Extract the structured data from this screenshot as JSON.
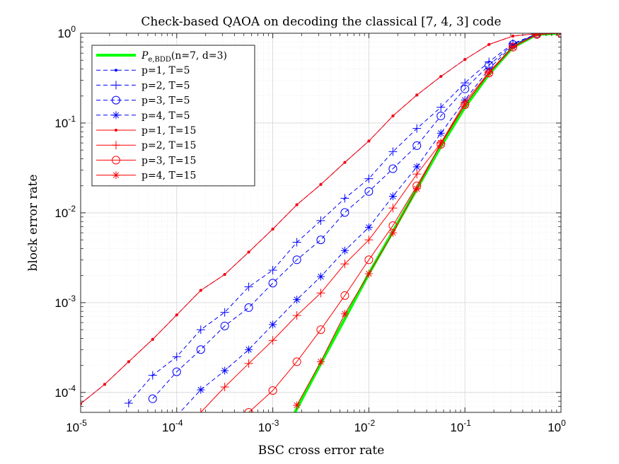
{
  "chart_data": {
    "type": "line",
    "title": "Check-based QAOA on decoding the classical [7, 4, 3] code",
    "xlabel": "BSC cross error rate",
    "ylabel": "block error rate",
    "xscale": "log",
    "yscale": "log",
    "xlim": [
      1e-05,
      1
    ],
    "ylim": [
      6e-05,
      1
    ],
    "grid": true,
    "minor_grid": true,
    "legend_position": "top-left",
    "xticks": [
      {
        "base": "10",
        "exp": "-5"
      },
      {
        "base": "10",
        "exp": "-4"
      },
      {
        "base": "10",
        "exp": "-3"
      },
      {
        "base": "10",
        "exp": "-2"
      },
      {
        "base": "10",
        "exp": "-1"
      },
      {
        "base": "10",
        "exp": "0"
      }
    ],
    "yticks": [
      {
        "base": "10",
        "exp": "-4"
      },
      {
        "base": "10",
        "exp": "-3"
      },
      {
        "base": "10",
        "exp": "-2"
      },
      {
        "base": "10",
        "exp": "-1"
      },
      {
        "base": "10",
        "exp": "0"
      }
    ],
    "series": [
      {
        "name": "P_e,BDD(n=7, d=3)",
        "label_main": "P",
        "label_sub": "e,BDD",
        "label_rest": "(n=7, d=3)",
        "color": "#00ff00",
        "dash": "solid",
        "marker": "none",
        "width": "bold",
        "x": [
          0.0017,
          0.00316,
          0.00562,
          0.01,
          0.0178,
          0.0316,
          0.0562,
          0.1,
          0.178,
          0.316,
          0.562,
          1
        ],
        "y": [
          6e-05,
          0.00021,
          0.00066,
          0.0021,
          0.0062,
          0.0185,
          0.055,
          0.15,
          0.35,
          0.7,
          0.97,
          1
        ]
      },
      {
        "name": "p=1, T=5",
        "label_main": "p=1, T=5",
        "color": "#0000ff",
        "dash": "dashed",
        "marker": "dot",
        "x": [
          1e-05,
          1.78e-05,
          3.16e-05,
          5.62e-05,
          0.0001,
          0.000178,
          0.000316,
          0.000562,
          0.001,
          0.00178,
          0.00316,
          0.00562,
          0.01,
          0.0178,
          0.0316,
          0.0562,
          0.1,
          0.178,
          0.316,
          0.562,
          1
        ],
        "y": [
          7.5e-05,
          0.000123,
          0.00022,
          0.00039,
          0.00073,
          0.00137,
          0.00206,
          0.00366,
          0.0066,
          0.0123,
          0.0207,
          0.0364,
          0.063,
          0.12,
          0.205,
          0.33,
          0.51,
          0.75,
          0.93,
          0.99,
          1
        ]
      },
      {
        "name": "p=2, T=5",
        "label_main": "p=2, T=5",
        "color": "#0000ff",
        "dash": "dashed",
        "marker": "plus",
        "x": [
          3.16e-05,
          5.62e-05,
          0.0001,
          0.000178,
          0.000316,
          0.000562,
          0.001,
          0.00178,
          0.00316,
          0.00562,
          0.01,
          0.0178,
          0.0316,
          0.0562,
          0.1,
          0.178,
          0.316,
          0.562,
          1
        ],
        "y": [
          7.6e-05,
          0.000155,
          0.00025,
          0.0005,
          0.00078,
          0.0015,
          0.0023,
          0.0047,
          0.0082,
          0.0145,
          0.024,
          0.048,
          0.087,
          0.15,
          0.28,
          0.48,
          0.77,
          0.98,
          1
        ]
      },
      {
        "name": "p=3, T=5",
        "label_main": "p=3, T=5",
        "color": "#0000ff",
        "dash": "dashed",
        "marker": "circle",
        "x": [
          5.62e-05,
          0.0001,
          0.000178,
          0.000316,
          0.000562,
          0.001,
          0.00178,
          0.00316,
          0.00562,
          0.01,
          0.0178,
          0.0316,
          0.0562,
          0.1,
          0.178,
          0.316,
          0.562,
          1
        ],
        "y": [
          8.5e-05,
          0.00017,
          0.0003,
          0.00055,
          0.00088,
          0.00165,
          0.003,
          0.005,
          0.0101,
          0.0173,
          0.031,
          0.056,
          0.12,
          0.24,
          0.44,
          0.75,
          0.98,
          1
        ]
      },
      {
        "name": "p=4, T=5",
        "label_main": "p=4, T=5",
        "color": "#0000ff",
        "dash": "dashed",
        "marker": "star",
        "x": [
          0.0001,
          0.000178,
          0.000316,
          0.000562,
          0.001,
          0.00178,
          0.00316,
          0.00562,
          0.01,
          0.0178,
          0.0316,
          0.0562,
          0.1,
          0.178,
          0.316,
          0.562,
          1
        ],
        "y": [
          5.5e-05,
          0.000107,
          0.000175,
          0.0003,
          0.00057,
          0.00108,
          0.00195,
          0.0038,
          0.0069,
          0.0153,
          0.0325,
          0.077,
          0.18,
          0.4,
          0.74,
          0.98,
          1
        ]
      },
      {
        "name": "p=1, T=15",
        "label_main": "p=1, T=15",
        "color": "#ff0000",
        "dash": "solid",
        "marker": "dot",
        "x": [
          1e-05,
          1.78e-05,
          3.16e-05,
          5.62e-05,
          0.0001,
          0.000178,
          0.000316,
          0.000562,
          0.001,
          0.00178,
          0.00316,
          0.00562,
          0.01,
          0.0178,
          0.0316,
          0.0562,
          0.1,
          0.178,
          0.316,
          0.562,
          1
        ],
        "y": [
          7.5e-05,
          0.000123,
          0.00022,
          0.00039,
          0.00073,
          0.00137,
          0.00206,
          0.00366,
          0.0066,
          0.0123,
          0.0207,
          0.0364,
          0.063,
          0.12,
          0.205,
          0.33,
          0.51,
          0.75,
          0.93,
          0.99,
          1
        ]
      },
      {
        "name": "p=2, T=15",
        "label_main": "p=2, T=15",
        "color": "#ff0000",
        "dash": "solid",
        "marker": "plus",
        "x": [
          0.000178,
          0.000316,
          0.000562,
          0.001,
          0.00178,
          0.00316,
          0.00562,
          0.01,
          0.0178,
          0.0316,
          0.0562,
          0.1,
          0.178,
          0.316,
          0.562,
          1
        ],
        "y": [
          6e-05,
          0.000115,
          0.00021,
          0.00038,
          0.00072,
          0.00128,
          0.0027,
          0.005,
          0.0113,
          0.027,
          0.06,
          0.17,
          0.37,
          0.71,
          0.97,
          1
        ]
      },
      {
        "name": "p=3, T=15",
        "label_main": "p=3, T=15",
        "color": "#ff0000",
        "dash": "solid",
        "marker": "circle",
        "x": [
          0.000562,
          0.001,
          0.00178,
          0.00316,
          0.00562,
          0.01,
          0.0178,
          0.0316,
          0.0562,
          0.1,
          0.178,
          0.316,
          0.562,
          1
        ],
        "y": [
          6e-05,
          0.000105,
          0.00022,
          0.0005,
          0.0012,
          0.003,
          0.0072,
          0.02,
          0.058,
          0.16,
          0.36,
          0.7,
          0.97,
          1
        ]
      },
      {
        "name": "p=4, T=15",
        "label_main": "p=4, T=15",
        "color": "#ff0000",
        "dash": "solid",
        "marker": "star",
        "x": [
          0.00178,
          0.00316,
          0.00562,
          0.01,
          0.0178,
          0.0316,
          0.0562,
          0.1,
          0.178,
          0.316,
          0.562,
          1
        ],
        "y": [
          7.2e-05,
          0.00022,
          0.00075,
          0.0021,
          0.006,
          0.0185,
          0.06,
          0.16,
          0.36,
          0.7,
          0.97,
          1
        ]
      }
    ]
  }
}
